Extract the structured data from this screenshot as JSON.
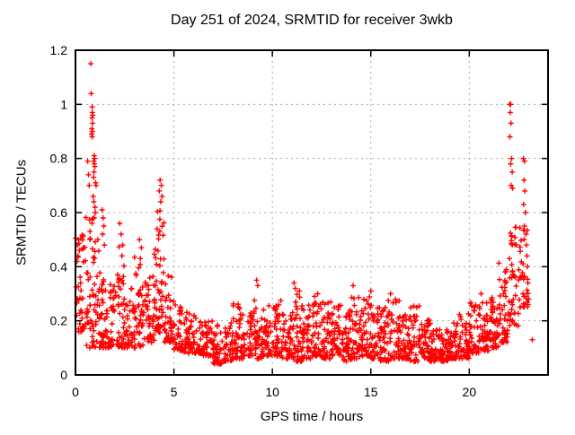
{
  "page": {
    "background": "#ffffff"
  },
  "chart_data": {
    "type": "scatter",
    "title": "Day 251 of 2024, SRMTID for receiver 3wkb",
    "xlabel": "GPS time / hours",
    "ylabel": "SRMTID / TECUs",
    "xlim": [
      0,
      24
    ],
    "ylim": [
      0,
      1.2
    ],
    "xticks": [
      0,
      5,
      10,
      15,
      20
    ],
    "xtick_labels": [
      "0",
      "5",
      "10",
      "15",
      "20"
    ],
    "yticks": [
      0,
      0.2,
      0.4,
      0.6,
      0.8,
      1,
      1.2
    ],
    "ytick_labels": [
      "0",
      "0.2",
      "0.4",
      "0.6",
      "0.8",
      "1",
      "1.2"
    ],
    "grid": true,
    "legend_position": "none",
    "series_name": "SRMTID",
    "marker": "plus",
    "marker_color": "#ff0000",
    "marker_size": 7,
    "axis_color": "#000000",
    "grid_color": "#a8a8a8",
    "gen": {
      "seed": 7,
      "columns_per_bin": 7,
      "low_bias_exponent": 1.8,
      "x_jitter": 0.08
    },
    "bands": [
      [
        0.0,
        0.5,
        40,
        0.16,
        0.52
      ],
      [
        0.5,
        1.0,
        48,
        0.1,
        0.6
      ],
      [
        1.0,
        1.5,
        46,
        0.1,
        0.5
      ],
      [
        1.5,
        2.0,
        40,
        0.1,
        0.34
      ],
      [
        2.0,
        2.5,
        42,
        0.1,
        0.48
      ],
      [
        2.5,
        3.0,
        40,
        0.1,
        0.32
      ],
      [
        3.0,
        3.5,
        40,
        0.1,
        0.44
      ],
      [
        3.5,
        4.0,
        40,
        0.12,
        0.38
      ],
      [
        4.0,
        4.5,
        52,
        0.15,
        0.62
      ],
      [
        4.5,
        5.0,
        42,
        0.12,
        0.4
      ],
      [
        5.0,
        5.5,
        40,
        0.09,
        0.26
      ],
      [
        5.5,
        6.0,
        40,
        0.08,
        0.24
      ],
      [
        6.0,
        6.5,
        40,
        0.08,
        0.22
      ],
      [
        6.5,
        7.0,
        40,
        0.07,
        0.2
      ],
      [
        7.0,
        7.5,
        40,
        0.04,
        0.19
      ],
      [
        7.5,
        8.0,
        40,
        0.05,
        0.2
      ],
      [
        8.0,
        8.5,
        40,
        0.06,
        0.27
      ],
      [
        8.5,
        9.0,
        40,
        0.07,
        0.23
      ],
      [
        9.0,
        9.5,
        40,
        0.06,
        0.3
      ],
      [
        9.5,
        10.0,
        40,
        0.07,
        0.26
      ],
      [
        10.0,
        10.5,
        42,
        0.07,
        0.3
      ],
      [
        10.5,
        11.0,
        42,
        0.06,
        0.24
      ],
      [
        11.0,
        11.5,
        44,
        0.05,
        0.33
      ],
      [
        11.5,
        12.0,
        42,
        0.06,
        0.26
      ],
      [
        12.0,
        12.5,
        42,
        0.07,
        0.3
      ],
      [
        12.5,
        13.0,
        42,
        0.06,
        0.28
      ],
      [
        13.0,
        13.5,
        42,
        0.07,
        0.26
      ],
      [
        13.5,
        14.0,
        42,
        0.05,
        0.24
      ],
      [
        14.0,
        14.5,
        42,
        0.06,
        0.3
      ],
      [
        14.5,
        15.0,
        42,
        0.07,
        0.31
      ],
      [
        15.0,
        15.5,
        42,
        0.06,
        0.26
      ],
      [
        15.5,
        16.0,
        42,
        0.05,
        0.3
      ],
      [
        16.0,
        16.5,
        42,
        0.06,
        0.28
      ],
      [
        16.5,
        17.0,
        40,
        0.06,
        0.23
      ],
      [
        17.0,
        17.5,
        40,
        0.05,
        0.26
      ],
      [
        17.5,
        18.0,
        42,
        0.06,
        0.21
      ],
      [
        18.0,
        18.5,
        44,
        0.05,
        0.19
      ],
      [
        18.5,
        19.0,
        46,
        0.05,
        0.18
      ],
      [
        19.0,
        19.5,
        44,
        0.06,
        0.2
      ],
      [
        19.5,
        20.0,
        42,
        0.06,
        0.23
      ],
      [
        20.0,
        20.5,
        42,
        0.08,
        0.28
      ],
      [
        20.5,
        21.0,
        44,
        0.09,
        0.27
      ],
      [
        21.0,
        21.5,
        44,
        0.1,
        0.29
      ],
      [
        21.5,
        22.0,
        44,
        0.12,
        0.42
      ],
      [
        22.0,
        22.5,
        40,
        0.18,
        0.55
      ],
      [
        22.5,
        23.0,
        36,
        0.25,
        0.55
      ]
    ],
    "outliers": [
      [
        0.78,
        1.15
      ],
      [
        0.8,
        1.04
      ],
      [
        0.85,
        0.99
      ],
      [
        0.86,
        0.97
      ],
      [
        0.88,
        0.96
      ],
      [
        0.84,
        0.95
      ],
      [
        0.87,
        0.93
      ],
      [
        0.83,
        0.91
      ],
      [
        0.86,
        0.9
      ],
      [
        0.82,
        0.89
      ],
      [
        0.85,
        0.88
      ],
      [
        0.62,
        0.79
      ],
      [
        0.66,
        0.74
      ],
      [
        0.7,
        0.7
      ],
      [
        0.95,
        0.81
      ],
      [
        0.97,
        0.8
      ],
      [
        0.93,
        0.79
      ],
      [
        0.96,
        0.78
      ],
      [
        0.98,
        0.77
      ],
      [
        0.94,
        0.75
      ],
      [
        0.92,
        0.73
      ],
      [
        1.02,
        0.71
      ],
      [
        1.05,
        0.7
      ],
      [
        0.9,
        0.66
      ],
      [
        0.93,
        0.64
      ],
      [
        0.99,
        0.62
      ],
      [
        1.01,
        0.6
      ],
      [
        0.15,
        0.5
      ],
      [
        0.1,
        0.48
      ],
      [
        0.2,
        0.46
      ],
      [
        0.12,
        0.44
      ],
      [
        1.35,
        0.61
      ],
      [
        1.4,
        0.58
      ],
      [
        1.44,
        0.55
      ],
      [
        1.38,
        0.52
      ],
      [
        1.47,
        0.48
      ],
      [
        2.25,
        0.56
      ],
      [
        2.32,
        0.52
      ],
      [
        2.4,
        0.48
      ],
      [
        2.36,
        0.44
      ],
      [
        3.25,
        0.5
      ],
      [
        3.35,
        0.47
      ],
      [
        3.3,
        0.43
      ],
      [
        4.3,
        0.72
      ],
      [
        4.36,
        0.7
      ],
      [
        4.26,
        0.68
      ],
      [
        4.4,
        0.66
      ],
      [
        4.33,
        0.64
      ],
      [
        9.2,
        0.35
      ],
      [
        9.26,
        0.33
      ],
      [
        11.1,
        0.34
      ],
      [
        12.3,
        0.3
      ],
      [
        14.1,
        0.33
      ],
      [
        15.0,
        0.31
      ],
      [
        16.0,
        0.3
      ],
      [
        20.6,
        0.3
      ],
      [
        22.05,
        1.0
      ],
      [
        22.1,
        1.0
      ],
      [
        22.08,
        0.97
      ],
      [
        22.12,
        0.93
      ],
      [
        22.06,
        0.88
      ],
      [
        22.15,
        0.8
      ],
      [
        22.1,
        0.78
      ],
      [
        22.18,
        0.75
      ],
      [
        22.12,
        0.7
      ],
      [
        22.2,
        0.69
      ],
      [
        22.75,
        0.8
      ],
      [
        22.8,
        0.79
      ],
      [
        22.78,
        0.72
      ],
      [
        22.82,
        0.68
      ],
      [
        22.76,
        0.63
      ],
      [
        22.85,
        0.6
      ],
      [
        22.8,
        0.55
      ],
      [
        22.88,
        0.52
      ],
      [
        22.9,
        0.48
      ],
      [
        22.93,
        0.44
      ],
      [
        22.95,
        0.4
      ],
      [
        22.98,
        0.34
      ],
      [
        23.02,
        0.28
      ],
      [
        23.2,
        0.13
      ]
    ]
  }
}
